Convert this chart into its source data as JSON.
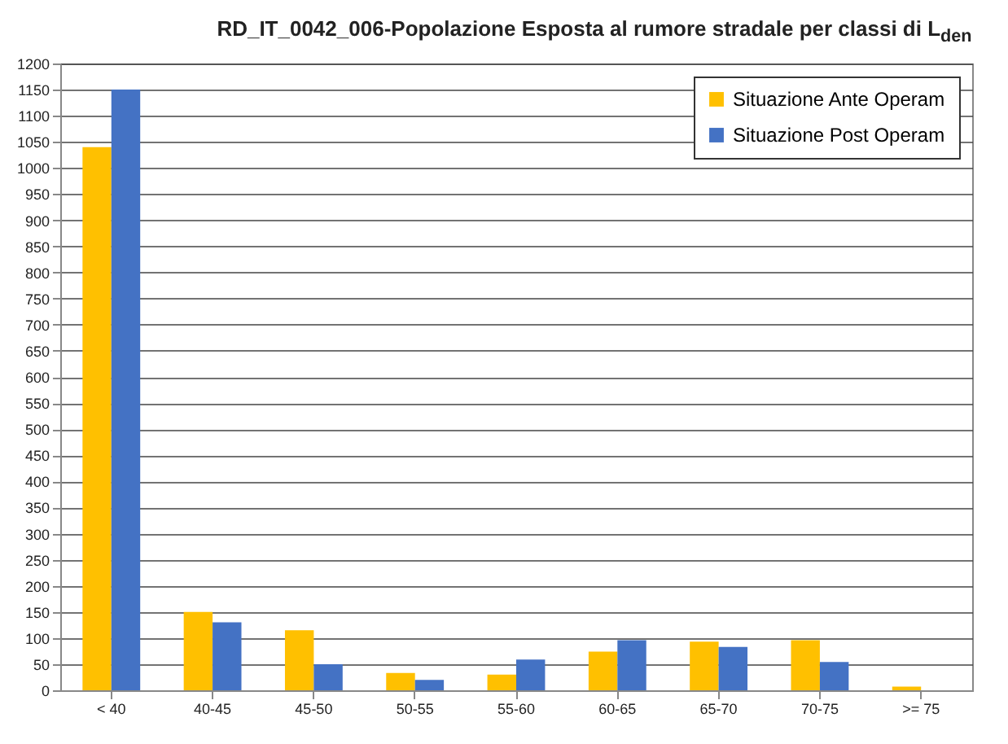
{
  "chart_data": {
    "type": "bar",
    "title": "RD_IT_0042_006-Popolazione Esposta al rumore stradale per classi di L$_{den}$",
    "categories": [
      "< 40",
      "40-45",
      "45-50",
      "50-55",
      "55-60",
      "60-65",
      "65-70",
      "70-75",
      ">= 75"
    ],
    "series": [
      {
        "name": "Situazione Ante Operam",
        "color": "#ffc000",
        "values": [
          1040,
          150,
          115,
          33,
          30,
          74,
          93,
          96,
          7
        ]
      },
      {
        "name": "Situazione Post Operam",
        "color": "#4472c4",
        "values": [
          1150,
          130,
          50,
          20,
          59,
          96,
          83,
          54,
          0
        ]
      }
    ],
    "ylim": [
      0,
      1200
    ],
    "yticks": [
      0,
      50,
      100,
      150,
      200,
      250,
      300,
      350,
      400,
      450,
      500,
      550,
      600,
      650,
      700,
      750,
      800,
      850,
      900,
      950,
      1000,
      1050,
      1100,
      1150,
      1200
    ],
    "grid": "y",
    "legend": "top right"
  }
}
